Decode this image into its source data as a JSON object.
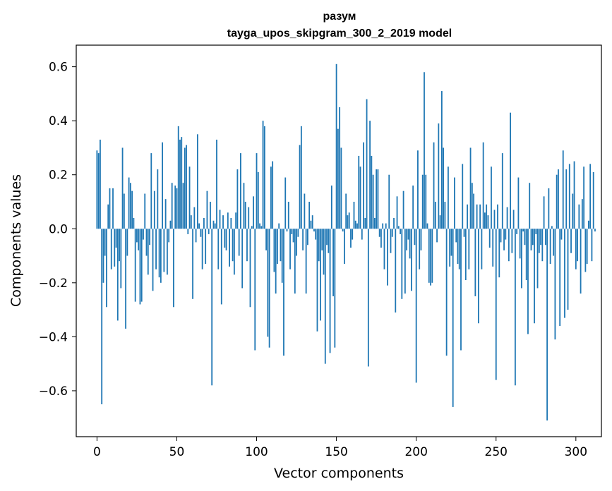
{
  "chart_data": {
    "type": "bar",
    "title": "разум",
    "subtitle": "tayga_upos_skipgram_300_2_2019 model",
    "xlabel": "Vector components",
    "ylabel": "Components values",
    "xlim": [
      -13,
      316
    ],
    "ylim": [
      -0.77,
      0.68
    ],
    "xticks": [
      0,
      50,
      100,
      150,
      200,
      250,
      300
    ],
    "yticks": [
      -0.6,
      -0.4,
      -0.2,
      0.0,
      0.2,
      0.4,
      0.6
    ],
    "ytick_labels": [
      "−0.6",
      "−0.4",
      "−0.2",
      "0.0",
      "0.2",
      "0.4",
      "0.6"
    ],
    "bar_color": "#1f77b4",
    "grid": false,
    "legend": "none",
    "values": [
      0.29,
      0.28,
      0.33,
      -0.65,
      -0.2,
      -0.1,
      -0.29,
      0.09,
      0.15,
      -0.15,
      0.15,
      -0.14,
      -0.07,
      -0.34,
      -0.12,
      -0.22,
      0.3,
      0.13,
      -0.37,
      -0.1,
      0.19,
      0.17,
      0.14,
      0.04,
      -0.27,
      -0.05,
      -0.08,
      -0.28,
      -0.27,
      -0.04,
      0.13,
      -0.1,
      -0.17,
      -0.06,
      0.28,
      -0.23,
      0.14,
      -0.15,
      0.22,
      -0.18,
      -0.2,
      0.32,
      -0.16,
      0.11,
      -0.17,
      -0.05,
      0.03,
      0.17,
      -0.29,
      0.16,
      0.15,
      0.38,
      0.33,
      0.34,
      0.17,
      0.3,
      0.31,
      -0.02,
      0.23,
      0.05,
      -0.26,
      0.08,
      -0.05,
      0.35,
      0.02,
      -0.03,
      -0.15,
      0.04,
      -0.13,
      0.14,
      -0.02,
      0.1,
      -0.58,
      0.03,
      0.02,
      0.33,
      -0.15,
      0.07,
      -0.28,
      0.05,
      -0.07,
      -0.08,
      0.06,
      -0.14,
      0.04,
      -0.12,
      -0.17,
      0.06,
      0.22,
      -0.1,
      0.28,
      -0.22,
      0.17,
      0.1,
      -0.12,
      0.08,
      -0.29,
      0.01,
      0.12,
      -0.45,
      0.28,
      0.21,
      0.02,
      0.01,
      0.4,
      0.38,
      -0.08,
      -0.4,
      -0.44,
      0.23,
      0.25,
      -0.16,
      -0.24,
      -0.13,
      0.02,
      -0.12,
      -0.2,
      -0.47,
      0.19,
      -0.01,
      0.1,
      -0.15,
      -0.02,
      -0.05,
      -0.24,
      -0.1,
      -0.03,
      0.31,
      0.38,
      -0.08,
      0.13,
      -0.24,
      -0.06,
      0.1,
      0.03,
      0.05,
      -0.01,
      -0.04,
      -0.38,
      -0.12,
      -0.34,
      -0.08,
      -0.17,
      -0.5,
      -0.06,
      -0.09,
      -0.46,
      0.16,
      -0.25,
      -0.44,
      0.61,
      0.37,
      0.45,
      0.3,
      -0.01,
      -0.13,
      0.13,
      0.05,
      0.06,
      -0.07,
      -0.04,
      0.1,
      0.03,
      0.02,
      0.27,
      0.23,
      -0.04,
      0.32,
      0.04,
      0.48,
      -0.51,
      0.4,
      0.27,
      0.2,
      0.04,
      0.22,
      0.22,
      -0.03,
      -0.07,
      0.02,
      -0.15,
      0.02,
      -0.21,
      0.2,
      -0.09,
      -0.03,
      0.04,
      -0.31,
      0.12,
      0.01,
      -0.02,
      -0.26,
      0.14,
      -0.24,
      -0.08,
      -0.04,
      -0.11,
      -0.23,
      0.16,
      -0.06,
      -0.57,
      0.29,
      -0.15,
      -0.08,
      0.2,
      0.58,
      0.2,
      0.02,
      -0.2,
      -0.21,
      -0.2,
      0.32,
      0.1,
      -0.05,
      0.39,
      0.05,
      0.51,
      0.3,
      0.1,
      -0.47,
      0.23,
      -0.14,
      -0.1,
      -0.66,
      0.19,
      -0.05,
      -0.13,
      -0.15,
      -0.45,
      0.24,
      -0.03,
      -0.19,
      0.09,
      -0.15,
      0.3,
      0.17,
      0.13,
      -0.25,
      0.09,
      -0.35,
      0.09,
      -0.15,
      0.32,
      0.06,
      0.09,
      0.05,
      -0.07,
      0.23,
      -0.14,
      0.07,
      -0.56,
      0.09,
      -0.18,
      -0.05,
      0.28,
      -0.08,
      -0.04,
      0.08,
      -0.12,
      0.43,
      -0.09,
      0.07,
      -0.58,
      -0.02,
      0.19,
      -0.11,
      -0.22,
      -0.01,
      -0.06,
      -0.19,
      -0.39,
      0.17,
      -0.08,
      -0.06,
      -0.35,
      -0.02,
      -0.22,
      -0.09,
      -0.06,
      -0.12,
      0.12,
      -0.06,
      -0.71,
      0.15,
      -0.13,
      0.01,
      -0.1,
      -0.41,
      0.2,
      0.22,
      -0.36,
      -0.04,
      0.29,
      -0.33,
      0.22,
      -0.3,
      0.24,
      -0.09,
      0.13,
      0.25,
      -0.15,
      -0.12,
      0.09,
      -0.24,
      0.11,
      0.23,
      -0.16,
      -0.13,
      0.03,
      0.24,
      -0.12,
      0.21,
      -0.01
    ]
  }
}
